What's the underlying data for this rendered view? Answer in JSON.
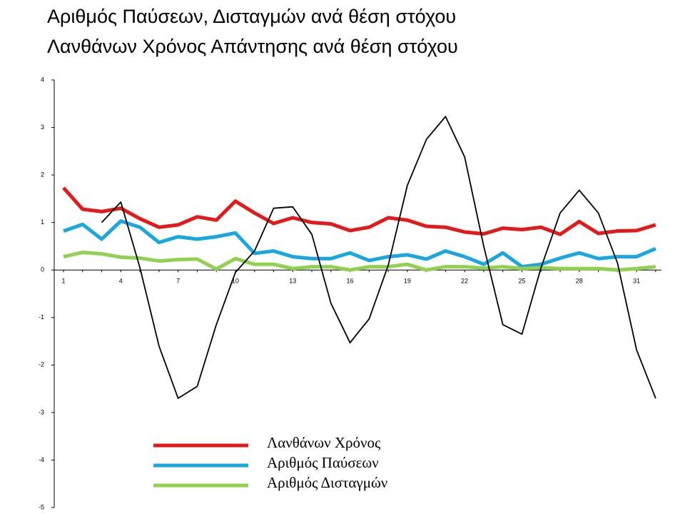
{
  "chart_data": {
    "type": "line",
    "title": [
      "Αριθμός Παύσεων, Δισταγμών ανά θέση στόχου",
      "Λανθάνων Χρόνος Απάντησης ανά θέση στόχου"
    ],
    "categories": [
      1,
      null,
      null,
      4,
      null,
      null,
      7,
      null,
      null,
      10,
      null,
      null,
      13,
      null,
      null,
      16,
      null,
      null,
      19,
      null,
      null,
      22,
      null,
      null,
      25,
      null,
      null,
      28,
      null,
      null,
      31,
      null
    ],
    "ylim": [
      -5,
      4
    ],
    "yticks": [
      -5,
      -4,
      -3,
      -2,
      -1,
      0,
      1,
      2,
      3,
      4
    ],
    "series": [
      {
        "name": "Λανθάνων Χρόνος",
        "color": "#e31a1c",
        "values": [
          1.73,
          1.28,
          1.23,
          1.3,
          1.08,
          0.9,
          0.95,
          1.12,
          1.05,
          1.45,
          1.2,
          0.98,
          1.1,
          1.0,
          0.97,
          0.83,
          0.9,
          1.1,
          1.05,
          0.92,
          0.9,
          0.8,
          0.76,
          0.88,
          0.85,
          0.9,
          0.75,
          1.02,
          0.77,
          0.82,
          0.83,
          0.95
        ]
      },
      {
        "name": "Αριθμός Παύσεων",
        "color": "#1aa7e0",
        "values": [
          0.82,
          0.96,
          0.65,
          1.03,
          0.9,
          0.58,
          0.7,
          0.65,
          0.7,
          0.78,
          0.35,
          0.4,
          0.28,
          0.24,
          0.24,
          0.36,
          0.2,
          0.28,
          0.32,
          0.23,
          0.4,
          0.28,
          0.12,
          0.36,
          0.07,
          0.12,
          0.25,
          0.36,
          0.24,
          0.28,
          0.28,
          0.45
        ]
      },
      {
        "name": "Αριθμός Δισταγμών",
        "color": "#92d050",
        "values": [
          0.28,
          0.37,
          0.34,
          0.27,
          0.25,
          0.19,
          0.22,
          0.23,
          0.02,
          0.24,
          0.12,
          0.12,
          0.03,
          0.07,
          0.07,
          0,
          0.07,
          0.07,
          0.12,
          0,
          0.07,
          0.07,
          0.04,
          0.07,
          0.03,
          0.05,
          0.03,
          0.03,
          0.03,
          0,
          0.03,
          0.07
        ]
      },
      {
        "color": "#000000",
        "values": [
          null,
          null,
          1.0,
          1.43,
          0.05,
          -1.6,
          -2.7,
          -2.45,
          -1.15,
          -0.05,
          0.4,
          1.3,
          1.33,
          0.75,
          -0.7,
          -1.53,
          -1.03,
          0.1,
          1.78,
          2.75,
          3.23,
          2.38,
          0.5,
          -1.15,
          -1.35,
          0.05,
          1.2,
          1.68,
          1.2,
          0.15,
          -1.68,
          -2.7
        ]
      }
    ]
  }
}
